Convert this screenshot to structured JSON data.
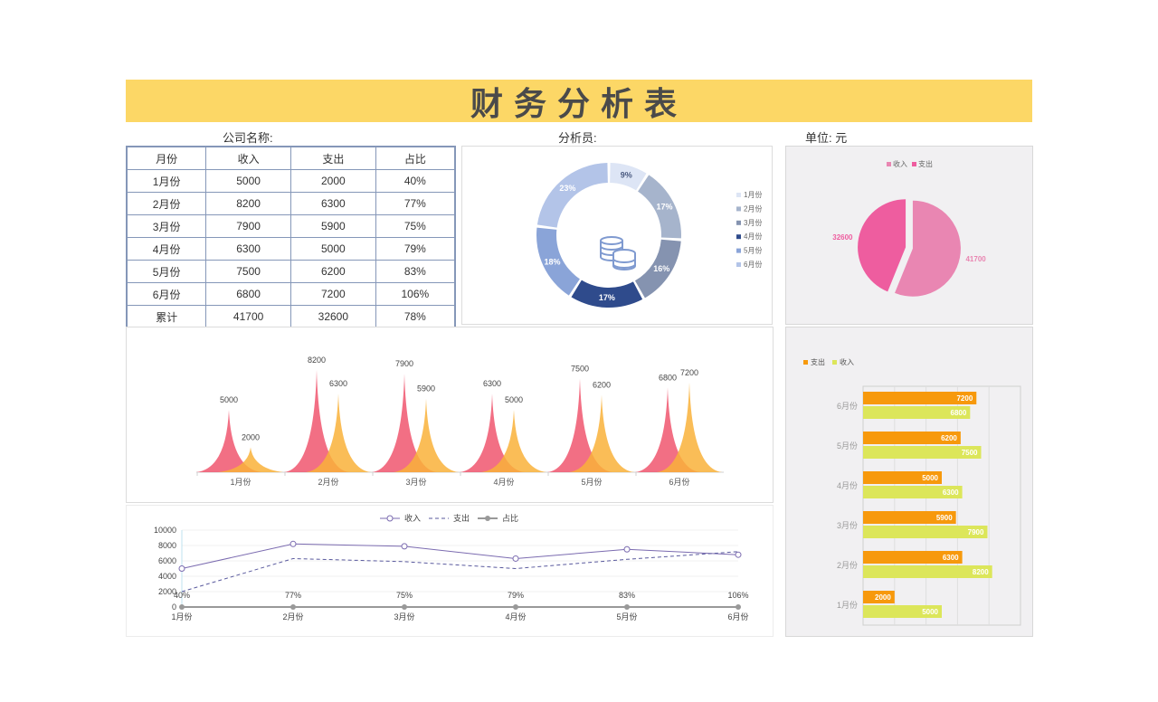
{
  "title": "财务分析表",
  "meta": {
    "company_label": "公司名称:",
    "analyst_label": "分析员:",
    "unit_label": "单位: 元"
  },
  "table": {
    "headers": [
      "月份",
      "收入",
      "支出",
      "占比"
    ],
    "rows": [
      [
        "1月份",
        "5000",
        "2000",
        "40%"
      ],
      [
        "2月份",
        "8200",
        "6300",
        "77%"
      ],
      [
        "3月份",
        "7900",
        "5900",
        "75%"
      ],
      [
        "4月份",
        "6300",
        "5000",
        "79%"
      ],
      [
        "5月份",
        "7500",
        "6200",
        "83%"
      ],
      [
        "6月份",
        "6800",
        "7200",
        "106%"
      ],
      [
        "累计",
        "41700",
        "32600",
        "78%"
      ]
    ]
  },
  "colors": {
    "title_bg": "#fcd766",
    "income_peak": "#f0566e",
    "expense_peak": "#f9b23a",
    "line_income": "#7b6bb0",
    "line_expense": "#5a5a9e",
    "line_ratio": "#999999",
    "bar_expense": "#f7990c",
    "bar_income": "#dce65a",
    "pie_income": "#e986b2",
    "pie_expense": "#ee5d9f",
    "donut": [
      "#dde5f5",
      "#a6b4cc",
      "#8593b0",
      "#2f4b8c",
      "#8aa4d8",
      "#b3c4e8"
    ]
  },
  "icons": {
    "coins": "coins-icon"
  },
  "chart_data": [
    {
      "id": "donut",
      "type": "pie",
      "variant": "donut",
      "categories": [
        "1月份",
        "2月份",
        "3月份",
        "4月份",
        "5月份",
        "6月份"
      ],
      "values": [
        9,
        17,
        16,
        17,
        18,
        23
      ],
      "labels": [
        "9%",
        "17%",
        "16%",
        "17%",
        "18%",
        "23%"
      ],
      "legend": [
        "1月份",
        "2月份",
        "3月份",
        "4月份",
        "5月份",
        "6月份"
      ],
      "legend_position": "right"
    },
    {
      "id": "pie",
      "type": "pie",
      "categories": [
        "收入",
        "支出"
      ],
      "values": [
        41700,
        32600
      ],
      "labels": [
        "41700",
        "32600"
      ],
      "legend": [
        "收入",
        "支出"
      ],
      "legend_position": "top"
    },
    {
      "id": "peaks",
      "type": "area",
      "categories": [
        "1月份",
        "2月份",
        "3月份",
        "4月份",
        "5月份",
        "6月份"
      ],
      "series": [
        {
          "name": "收入",
          "values": [
            5000,
            8200,
            7900,
            6300,
            7500,
            6800
          ]
        },
        {
          "name": "支出",
          "values": [
            2000,
            6300,
            5900,
            5000,
            6200,
            7200
          ]
        }
      ],
      "ylim": [
        0,
        8200
      ]
    },
    {
      "id": "hbar",
      "type": "bar",
      "orientation": "horizontal",
      "categories": [
        "1月份",
        "2月份",
        "3月份",
        "4月份",
        "5月份",
        "6月份"
      ],
      "series": [
        {
          "name": "支出",
          "values": [
            2000,
            6300,
            5900,
            5000,
            6200,
            7200
          ]
        },
        {
          "name": "收入",
          "values": [
            5000,
            8200,
            7900,
            6300,
            7500,
            6800
          ]
        }
      ],
      "legend": [
        "支出",
        "收入"
      ],
      "legend_position": "top-left",
      "xlim": [
        0,
        10000
      ]
    },
    {
      "id": "line",
      "type": "line",
      "categories": [
        "1月份",
        "2月份",
        "3月份",
        "4月份",
        "5月份",
        "6月份"
      ],
      "series": [
        {
          "name": "收入",
          "values": [
            5000,
            8200,
            7900,
            6300,
            7500,
            6800
          ]
        },
        {
          "name": "支出",
          "values": [
            2000,
            6300,
            5900,
            5000,
            6200,
            7200
          ]
        },
        {
          "name": "占比",
          "values": [
            0.4,
            0.77,
            0.75,
            0.79,
            0.83,
            1.06
          ],
          "labels": [
            "40%",
            "77%",
            "75%",
            "79%",
            "83%",
            "106%"
          ]
        }
      ],
      "legend": [
        "收入",
        "支出",
        "占比"
      ],
      "legend_position": "top",
      "ylim": [
        0,
        10000
      ],
      "yticks": [
        "0",
        "2000",
        "4000",
        "6000",
        "8000",
        "10000"
      ],
      "grid": true
    }
  ]
}
